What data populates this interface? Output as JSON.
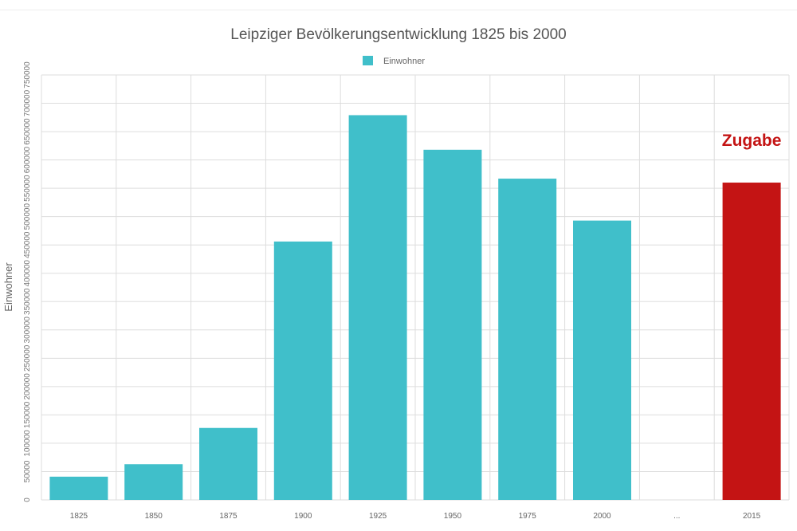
{
  "chart_data": {
    "type": "bar",
    "title": "Leipziger Bevölkerungsentwicklung 1825 bis 2000",
    "ylabel": "Einwohner",
    "xlabel": "",
    "ylim": [
      0,
      750000
    ],
    "yticks": [
      0,
      50000,
      100000,
      150000,
      200000,
      250000,
      300000,
      350000,
      400000,
      450000,
      500000,
      550000,
      600000,
      650000,
      700000,
      750000
    ],
    "grid": true,
    "legend": {
      "placement": "top-center",
      "entries": [
        "Einwohner"
      ]
    },
    "categories": [
      "1825",
      "1850",
      "1875",
      "1900",
      "1925",
      "1950",
      "1975",
      "2000",
      "...",
      "2015"
    ],
    "series": [
      {
        "name": "Einwohner",
        "values": [
          41000,
          63000,
          127000,
          456000,
          679000,
          618000,
          567000,
          493000,
          null,
          560000
        ]
      }
    ],
    "highlight": {
      "category": "2015",
      "color": "#c41414",
      "annotation": "Zugabe"
    },
    "colors": {
      "bar": "#40bfca",
      "highlight": "#c41414",
      "grid": "#dddddd"
    }
  }
}
